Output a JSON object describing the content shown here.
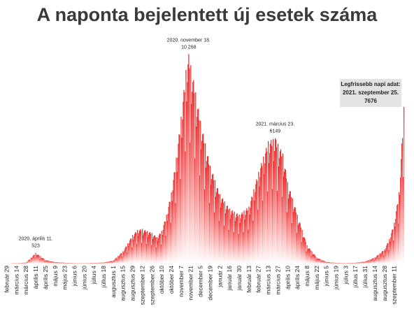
{
  "chart_data": {
    "type": "bar",
    "title": "A naponta bejelentett új esetek száma",
    "xlabel": "",
    "ylabel": "",
    "ylim": [
      0,
      10800
    ],
    "grid": false,
    "legend": "none",
    "bar_colors": {
      "top": "#ee2a2a",
      "bottom": "#ffffff"
    },
    "series": [
      {
        "name": "",
        "shape": [
          [
            "2020-02-29",
            0
          ],
          [
            "2020-03-14",
            10
          ],
          [
            "2020-03-28",
            50
          ],
          [
            "2020-04-11",
            523
          ],
          [
            "2020-04-25",
            180
          ],
          [
            "2020-05-09",
            70
          ],
          [
            "2020-05-23",
            40
          ],
          [
            "2020-06-06",
            20
          ],
          [
            "2020-06-20",
            15
          ],
          [
            "2020-07-04",
            30
          ],
          [
            "2020-07-18",
            50
          ],
          [
            "2020-08-01",
            150
          ],
          [
            "2020-08-15",
            600
          ],
          [
            "2020-08-29",
            1400
          ],
          [
            "2020-09-05",
            1650
          ],
          [
            "2020-09-12",
            1700
          ],
          [
            "2020-09-26",
            1500
          ],
          [
            "2020-10-03",
            1300
          ],
          [
            "2020-10-10",
            1600
          ],
          [
            "2020-10-17",
            2400
          ],
          [
            "2020-10-24",
            3500
          ],
          [
            "2020-10-31",
            5200
          ],
          [
            "2020-11-07",
            7200
          ],
          [
            "2020-11-14",
            9500
          ],
          [
            "2020-11-18",
            10268
          ],
          [
            "2020-11-25",
            9000
          ],
          [
            "2020-12-05",
            7000
          ],
          [
            "2020-12-19",
            4800
          ],
          [
            "2021-01-02",
            3400
          ],
          [
            "2021-01-16",
            2700
          ],
          [
            "2021-01-30",
            2400
          ],
          [
            "2021-02-13",
            2800
          ],
          [
            "2021-02-27",
            4500
          ],
          [
            "2021-03-13",
            6000
          ],
          [
            "2021-03-23",
            6149
          ],
          [
            "2021-04-03",
            5400
          ],
          [
            "2021-04-10",
            4000
          ],
          [
            "2021-04-24",
            2400
          ],
          [
            "2021-05-08",
            900
          ],
          [
            "2021-05-22",
            300
          ],
          [
            "2021-06-05",
            80
          ],
          [
            "2021-06-19",
            30
          ],
          [
            "2021-07-03",
            20
          ],
          [
            "2021-07-17",
            40
          ],
          [
            "2021-07-31",
            100
          ],
          [
            "2021-08-14",
            300
          ],
          [
            "2021-08-28",
            700
          ],
          [
            "2021-09-04",
            1200
          ],
          [
            "2021-09-11",
            2000
          ],
          [
            "2021-09-18",
            3500
          ],
          [
            "2021-09-25",
            7676
          ]
        ]
      }
    ],
    "x_ticks": [
      "február 29",
      "március 14",
      "március 28",
      "április 11",
      "április 25",
      "május 9",
      "május 23",
      "június 6",
      "június 20",
      "július 4",
      "július 18",
      "augusztus 1",
      "augusztus 15",
      "augusztus 29",
      "szeptember 12",
      "szeptember 26",
      "október 10",
      "október 24",
      "november 7",
      "november 21",
      "december 5",
      "december 19",
      "január 2",
      "január 16",
      "január 30",
      "február 13",
      "február 27",
      "március 13",
      "március 27",
      "április 10",
      "április 24",
      "május 8",
      "május 22",
      "június 5",
      "június 19",
      "július 3",
      "július 17",
      "július 31",
      "augusztus 14",
      "augusztus 28",
      "szeptember 11"
    ],
    "annotations": [
      {
        "date": "2020-04-11",
        "lines": [
          "2020. április 11.",
          "523"
        ],
        "value": 523
      },
      {
        "date": "2020-11-18",
        "lines": [
          "2020. november 18.",
          "10 268"
        ],
        "value": 10268
      },
      {
        "date": "2021-03-23",
        "lines": [
          "2021. március 23.",
          "6149"
        ],
        "value": 6149
      }
    ],
    "callout": {
      "lines": [
        "Legfrissebb napi adat:",
        "2021. szeptember  25.",
        "7676"
      ],
      "value": 7676
    }
  }
}
